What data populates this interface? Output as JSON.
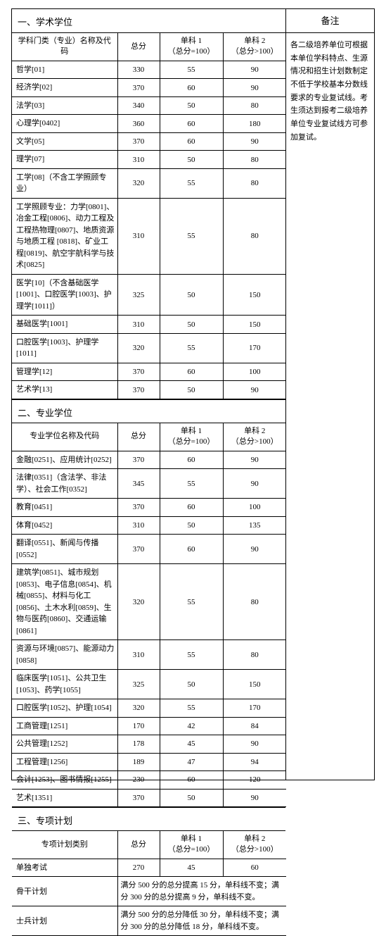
{
  "remark_header": "备注",
  "remark_body": "各二级培养单位可根据本单位学科特点、生源情况和招生计划数制定不低于学校基本分数线要求的专业复试线。考生须达到报考二级培养单位专业复试线方可参加复试。",
  "section1": {
    "title": "一、学术学位",
    "head": {
      "name": "学科门类（专业）名称及代码",
      "total": "总分",
      "s1": "单科 1\n（总分=100）",
      "s2": "单科 2\n（总分>100）"
    },
    "rows": [
      {
        "name": "哲学[01]",
        "total": "330",
        "s1": "55",
        "s2": "90"
      },
      {
        "name": "经济学[02]",
        "total": "370",
        "s1": "60",
        "s2": "90"
      },
      {
        "name": "法学[03]",
        "total": "340",
        "s1": "50",
        "s2": "80"
      },
      {
        "name": "心理学[0402]",
        "total": "360",
        "s1": "60",
        "s2": "180"
      },
      {
        "name": "文学[05]",
        "total": "370",
        "s1": "60",
        "s2": "90"
      },
      {
        "name": "理学[07]",
        "total": "310",
        "s1": "50",
        "s2": "80"
      },
      {
        "name": "工学[08]（不含工学照顾专业）",
        "total": "320",
        "s1": "55",
        "s2": "80"
      },
      {
        "name": "工学照顾专业：力学[0801]、冶金工程[0806]、动力工程及工程热物理[0807]、地质资源与地质工程 [0818]、矿业工程[0819]、航空宇航科学与技术[0825]",
        "total": "310",
        "s1": "55",
        "s2": "80"
      },
      {
        "name": "医学[10]（不含基础医学[1001]、口腔医学[1003]、护理学[1011]）",
        "total": "325",
        "s1": "50",
        "s2": "150"
      },
      {
        "name": "基础医学[1001]",
        "total": "310",
        "s1": "50",
        "s2": "150"
      },
      {
        "name": "口腔医学[1003]、护理学[1011]",
        "total": "320",
        "s1": "55",
        "s2": "170"
      },
      {
        "name": "管理学[12]",
        "total": "370",
        "s1": "60",
        "s2": "100"
      },
      {
        "name": "艺术学[13]",
        "total": "370",
        "s1": "50",
        "s2": "90"
      }
    ]
  },
  "section2": {
    "title": "二、专业学位",
    "head": {
      "name": "专业学位名称及代码",
      "total": "总分",
      "s1": "单科 1\n（总分=100）",
      "s2": "单科 2\n（总分>100）"
    },
    "rows": [
      {
        "name": "金融[0251]、应用统计[0252]",
        "total": "370",
        "s1": "60",
        "s2": "90"
      },
      {
        "name": "法律[0351]（含法学、非法学）、社会工作[0352]",
        "total": "345",
        "s1": "55",
        "s2": "90"
      },
      {
        "name": "教育[0451]",
        "total": "370",
        "s1": "60",
        "s2": "100"
      },
      {
        "name": "体育[0452]",
        "total": "310",
        "s1": "50",
        "s2": "135"
      },
      {
        "name": "翻译[0551]、新闻与传播[0552]",
        "total": "370",
        "s1": "60",
        "s2": "90"
      },
      {
        "name": "建筑学[0851]、城市规划[0853]、电子信息[0854]、机械[0855]、材料与化工[0856]、土木水利[0859]、生物与医药[0860]、交通运输[0861]",
        "total": "320",
        "s1": "55",
        "s2": "80"
      },
      {
        "name": "资源与环境[0857]、能源动力[0858]",
        "total": "310",
        "s1": "55",
        "s2": "80"
      },
      {
        "name": "临床医学[1051]、公共卫生[1053]、药学[1055]",
        "total": "325",
        "s1": "50",
        "s2": "150"
      },
      {
        "name": "口腔医学[1052]、护理[1054]",
        "total": "320",
        "s1": "55",
        "s2": "170"
      },
      {
        "name": "工商管理[1251]",
        "total": "170",
        "s1": "42",
        "s2": "84"
      },
      {
        "name": "公共管理[1252]",
        "total": "178",
        "s1": "45",
        "s2": "90"
      },
      {
        "name": "工程管理[1256]",
        "total": "189",
        "s1": "47",
        "s2": "94"
      },
      {
        "name": "会计[1253]、图书情报[1255]",
        "total": "230",
        "s1": "60",
        "s2": "120"
      },
      {
        "name": "艺术[1351]",
        "total": "370",
        "s1": "50",
        "s2": "90"
      }
    ]
  },
  "section3": {
    "title": "三、专项计划",
    "head": {
      "name": "专项计划类别",
      "total": "总分",
      "s1": "单科 1\n（总分=100）",
      "s2": "单科 2\n（总分>100）"
    },
    "rows": [
      {
        "name": "单独考试",
        "total": "270",
        "s1": "45",
        "s2": "60"
      },
      {
        "name": "骨干计划",
        "note": "满分 500 分的总分提高 15 分，单科线不变；满分 300 分的总分提高 9 分，单科线不变。"
      },
      {
        "name": "士兵计划",
        "note": "满分 500 分的总分降低 30 分，单科线不变；满分 300 分的总分降低 18 分，单科线不变。"
      }
    ]
  }
}
